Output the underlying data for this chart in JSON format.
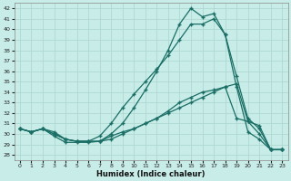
{
  "xlabel": "Humidex (Indice chaleur)",
  "bg_color": "#c8ede9",
  "grid_color": "#afd8d2",
  "line_color": "#1a6e65",
  "xlim": [
    -0.5,
    23.5
  ],
  "ylim": [
    27.5,
    42.5
  ],
  "yticks": [
    28,
    29,
    30,
    31,
    32,
    33,
    34,
    35,
    36,
    37,
    38,
    39,
    40,
    41,
    42
  ],
  "xticks": [
    0,
    1,
    2,
    3,
    4,
    5,
    6,
    7,
    8,
    9,
    10,
    11,
    12,
    13,
    14,
    15,
    16,
    17,
    18,
    19,
    20,
    21,
    22,
    23
  ],
  "lines": [
    [
      30.5,
      30.2,
      30.5,
      30.2,
      29.5,
      29.3,
      29.3,
      29.3,
      29.5,
      30.0,
      30.5,
      31.0,
      31.5,
      32.2,
      33.0,
      33.5,
      34.0,
      34.2,
      34.5,
      31.5,
      31.2,
      30.8,
      28.5,
      28.5
    ],
    [
      30.5,
      30.2,
      30.5,
      29.8,
      29.2,
      29.2,
      29.2,
      29.3,
      30.0,
      31.0,
      32.5,
      34.2,
      36.0,
      38.0,
      40.5,
      42.0,
      41.2,
      41.5,
      39.5,
      34.5,
      30.2,
      29.5,
      28.5,
      28.5
    ],
    [
      30.5,
      30.2,
      30.5,
      30.0,
      29.5,
      29.3,
      29.3,
      29.8,
      31.0,
      32.5,
      33.8,
      35.0,
      36.2,
      37.5,
      39.0,
      40.5,
      40.5,
      41.0,
      39.5,
      35.5,
      31.5,
      30.5,
      28.5,
      28.5
    ],
    [
      30.5,
      30.2,
      30.5,
      30.0,
      29.5,
      29.3,
      29.3,
      29.3,
      29.8,
      30.2,
      30.5,
      31.0,
      31.5,
      32.0,
      32.5,
      33.0,
      33.5,
      34.0,
      34.5,
      34.8,
      31.2,
      30.0,
      28.5,
      28.5
    ]
  ]
}
